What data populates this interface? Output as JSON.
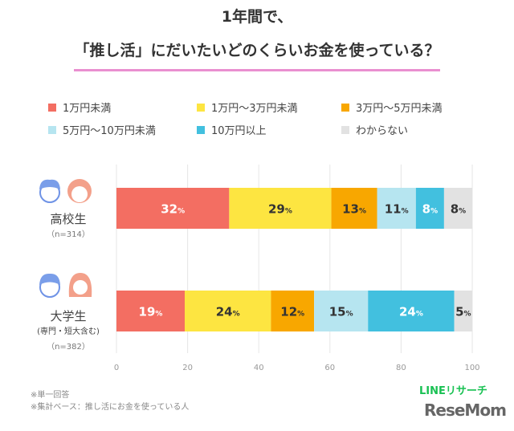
{
  "chart_data": {
    "type": "bar",
    "orientation": "horizontal",
    "stacked": true,
    "title": [
      "1年間で、",
      "「推し活」にだいたいどのくらいお金を使っている？"
    ],
    "categories": [
      "1万円未満",
      "1万円～3万円未満",
      "3万円～5万円未満",
      "5万円～10万円未満",
      "10万円以上",
      "わからない"
    ],
    "colors": [
      "#f36e62",
      "#fde541",
      "#f8a700",
      "#b6e5f0",
      "#42c0df",
      "#e2e2e2"
    ],
    "label_colors": [
      "#ffffff",
      "#333333",
      "#333333",
      "#333333",
      "#ffffff",
      "#333333"
    ],
    "groups": [
      {
        "name": "高校生",
        "sub": "",
        "n": "（n=314）",
        "values": [
          32,
          29,
          13,
          11,
          8,
          8
        ]
      },
      {
        "name": "大学生",
        "sub": "(専門・短大含む)",
        "n": "（n=382）",
        "values": [
          19,
          24,
          12,
          15,
          24,
          5
        ]
      }
    ],
    "xlim": [
      0,
      100
    ],
    "xticks": [
      "0",
      "20",
      "40",
      "60",
      "80",
      "100"
    ],
    "unit": "%",
    "grid": true,
    "legend": "top"
  },
  "notes": [
    "※単一回答",
    "※集計ベース：推し活にお金を使っている人"
  ],
  "logos": {
    "line": "LINEリサーチ",
    "resemom": "ReseMom"
  }
}
